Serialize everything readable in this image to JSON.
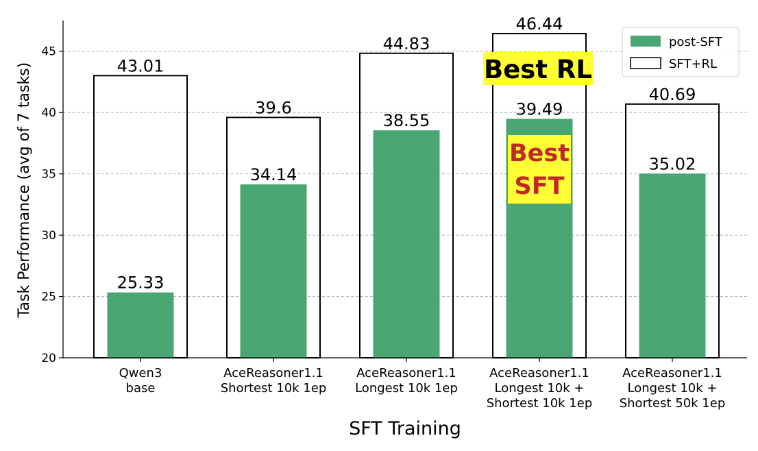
{
  "chart_data": {
    "type": "bar",
    "title": "",
    "xlabel": "SFT Training",
    "ylabel": "Task Performance (avg of 7 tasks)",
    "ylim": [
      20,
      47.5
    ],
    "yticks": [
      20,
      25,
      30,
      35,
      40,
      45
    ],
    "grid": "horizontal dashed",
    "legend_position": "top-right",
    "categories": [
      [
        "Qwen3",
        "base"
      ],
      [
        "AceReasoner1.1",
        "Shortest 10k 1ep"
      ],
      [
        "AceReasoner1.1",
        "Longest 10k 1ep"
      ],
      [
        "AceReasoner1.1",
        "Longest 10k +",
        "Shortest 10k 1ep"
      ],
      [
        "AceReasoner1.1",
        "Longest 10k +",
        "Shortest 50k 1ep"
      ]
    ],
    "series": [
      {
        "name": "post-SFT",
        "style": "filled",
        "color": "#4aa673",
        "values": [
          25.33,
          34.14,
          38.55,
          39.49,
          35.02
        ],
        "labels": [
          "25.33",
          "34.14",
          "38.55",
          "39.49",
          "35.02"
        ]
      },
      {
        "name": "SFT+RL",
        "style": "outline",
        "color": "#000000",
        "values": [
          43.01,
          39.6,
          44.83,
          46.44,
          40.69
        ],
        "labels": [
          "43.01",
          "39.6",
          "44.83",
          "46.44",
          "40.69"
        ]
      }
    ],
    "annotations": [
      {
        "lines": [
          "Best RL"
        ],
        "category_index": 3,
        "text_color": "#000000",
        "background": "#ffff33"
      },
      {
        "lines": [
          "Best",
          "SFT"
        ],
        "category_index": 3,
        "text_color": "#c0282a",
        "background": "#ffff33"
      }
    ]
  }
}
